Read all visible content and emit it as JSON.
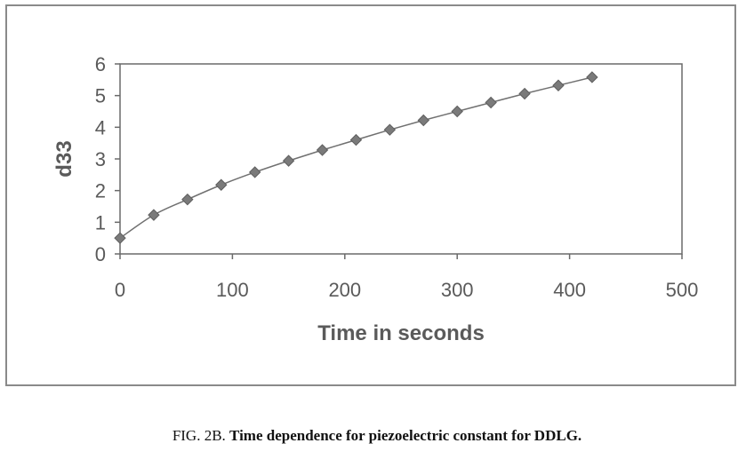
{
  "chart_data": {
    "type": "line",
    "x": [
      0,
      30,
      60,
      90,
      120,
      150,
      180,
      210,
      240,
      270,
      300,
      330,
      360,
      390,
      420
    ],
    "series": [
      {
        "values": [
          0.5,
          1.23,
          1.72,
          2.18,
          2.58,
          2.94,
          3.28,
          3.6,
          3.92,
          4.22,
          4.5,
          4.78,
          5.06,
          5.32,
          5.58
        ],
        "color": "#707070",
        "marker": "diamond"
      }
    ],
    "xlabel": "Time in seconds",
    "ylabel": "d33",
    "xlim": [
      0,
      500
    ],
    "ylim": [
      0,
      6
    ],
    "xticks": [
      0,
      100,
      200,
      300,
      400,
      500
    ],
    "yticks": [
      0,
      1,
      2,
      3,
      4,
      5,
      6
    ],
    "grid": false,
    "legend": "none"
  },
  "caption": {
    "label": "FIG. 2B.",
    "text": "Time dependence for piezoelectric constant for DDLG."
  }
}
